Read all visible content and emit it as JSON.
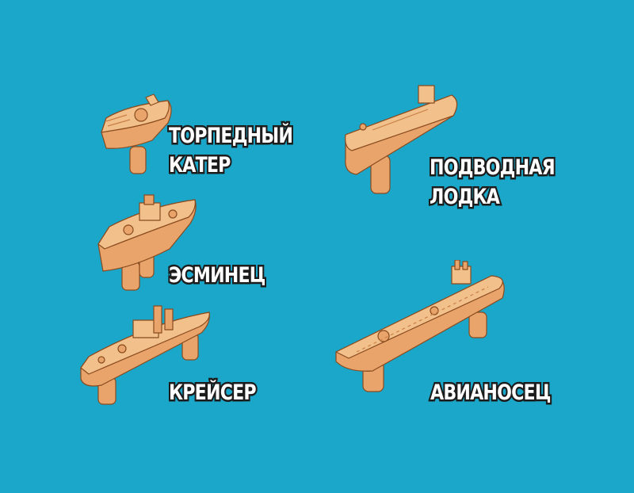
{
  "colors": {
    "background": "#1aa7c9",
    "piece_light": "#f2c08a",
    "piece_mid": "#e8a46a",
    "piece_dark": "#c98048",
    "outline": "#8a4a1e",
    "label_text": "#ffffff",
    "label_outline": "#1c1c1c"
  },
  "pieces": [
    {
      "id": "torpedo-boat",
      "label_lines": [
        "ТОРПЕДНЫЙ",
        "КАТЕР"
      ]
    },
    {
      "id": "submarine",
      "label_lines": [
        "ПОДВОДНАЯ",
        "ЛОДКА"
      ]
    },
    {
      "id": "destroyer",
      "label_lines": [
        "ЭСМИНЕЦ"
      ]
    },
    {
      "id": "cruiser",
      "label_lines": [
        "КРЕЙСЕР"
      ]
    },
    {
      "id": "aircraft-carrier",
      "label_lines": [
        "АВИАНОСЕЦ"
      ]
    }
  ]
}
